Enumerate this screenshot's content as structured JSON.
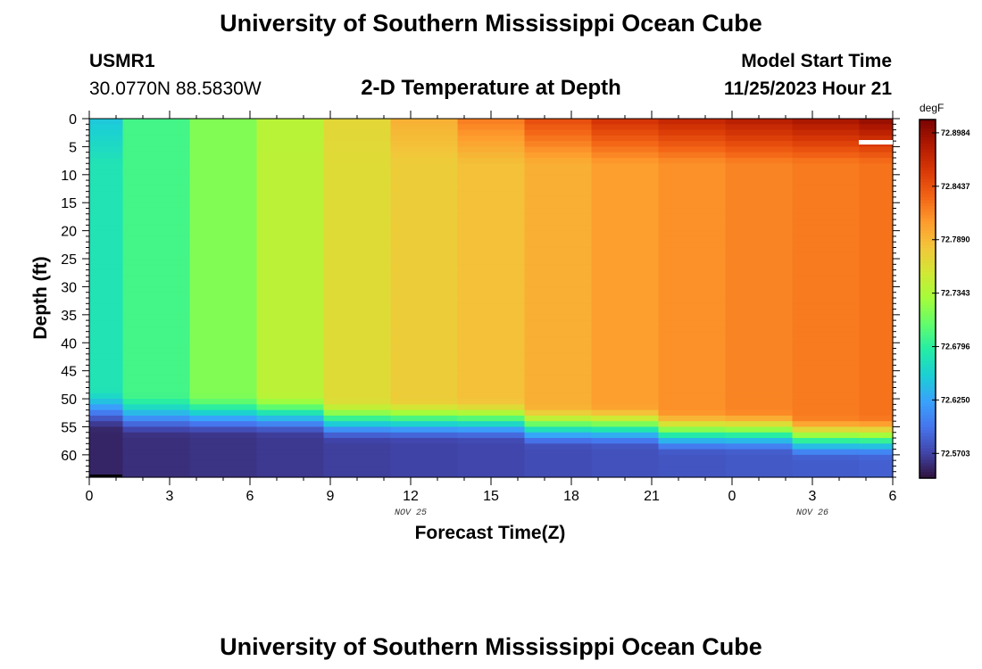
{
  "header": {
    "title": "University of Southern Mississippi Ocean Cube",
    "station_id": "USMR1",
    "coords": "30.0770N  88.5830W",
    "model_start_label": "Model Start Time",
    "model_start_value": "11/25/2023 Hour 21",
    "footer_title": "University of Southern Mississippi Ocean Cube"
  },
  "chart_data": {
    "type": "heatmap",
    "title": "2-D Temperature at Depth",
    "xlabel": "Forecast Time(Z)",
    "ylabel": "Depth (ft)",
    "x_tick_labels": [
      "0",
      "3",
      "6",
      "9",
      "12",
      "15",
      "18",
      "21",
      "0",
      "3",
      "6"
    ],
    "x_date_labels": [
      {
        "text": "NOV 25",
        "at_tick": 4
      },
      {
        "text": "NOV 26",
        "at_tick": 9
      }
    ],
    "x_hours_from_start": [
      0,
      3,
      6,
      9,
      12,
      15,
      18,
      21,
      24,
      27,
      30
    ],
    "ylim": [
      0,
      64
    ],
    "y_ticks": [
      0,
      5,
      10,
      15,
      20,
      25,
      30,
      35,
      40,
      45,
      50,
      55,
      60
    ],
    "y_reversed": true,
    "colorbar": {
      "unit": "degF",
      "tick_labels": [
        "72.8984",
        "72.8437",
        "72.7890",
        "72.7343",
        "72.6796",
        "72.6250",
        "72.5703"
      ],
      "min": 72.545,
      "max": 72.912
    },
    "columns": [
      {
        "hour": 0,
        "surface": 72.645,
        "mixed": 72.668,
        "bottom_start": 51,
        "bottom": 72.555
      },
      {
        "hour": 2.5,
        "surface": 72.69,
        "mixed": 72.69,
        "bottom_start": 52,
        "bottom": 72.56
      },
      {
        "hour": 5,
        "surface": 72.715,
        "mixed": 72.715,
        "bottom_start": 52,
        "bottom": 72.562
      },
      {
        "hour": 7.5,
        "surface": 72.74,
        "mixed": 72.742,
        "bottom_start": 52,
        "bottom": 72.565
      },
      {
        "hour": 10,
        "surface": 72.768,
        "mixed": 72.765,
        "bottom_start": 53,
        "bottom": 72.568
      },
      {
        "hour": 12.5,
        "surface": 72.795,
        "mixed": 72.776,
        "bottom_start": 53,
        "bottom": 72.57
      },
      {
        "hour": 15,
        "surface": 72.822,
        "mixed": 72.784,
        "bottom_start": 53,
        "bottom": 72.572
      },
      {
        "hour": 17.5,
        "surface": 72.848,
        "mixed": 72.795,
        "bottom_start": 54,
        "bottom": 72.575
      },
      {
        "hour": 20,
        "surface": 72.866,
        "mixed": 72.805,
        "bottom_start": 54,
        "bottom": 72.578
      },
      {
        "hour": 22.5,
        "surface": 72.876,
        "mixed": 72.812,
        "bottom_start": 55,
        "bottom": 72.58
      },
      {
        "hour": 25,
        "surface": 72.884,
        "mixed": 72.818,
        "bottom_start": 55,
        "bottom": 72.582
      },
      {
        "hour": 27.5,
        "surface": 72.892,
        "mixed": 72.822,
        "bottom_start": 56,
        "bottom": 72.584
      },
      {
        "hour": 30,
        "surface": 72.902,
        "mixed": 72.826,
        "bottom_start": 56,
        "bottom": 72.586
      }
    ]
  },
  "colors": {
    "colormap": [
      "#30123b",
      "#4145ab",
      "#4675ed",
      "#39a2fc",
      "#1bcfd4",
      "#24eca6",
      "#61fc6c",
      "#a4fc3b",
      "#d1e834",
      "#f3c63a",
      "#fe9b2d",
      "#f36315",
      "#d93806",
      "#b11901",
      "#7a0402"
    ],
    "marker_white": "#ffffff",
    "marker_black": "#000000"
  }
}
